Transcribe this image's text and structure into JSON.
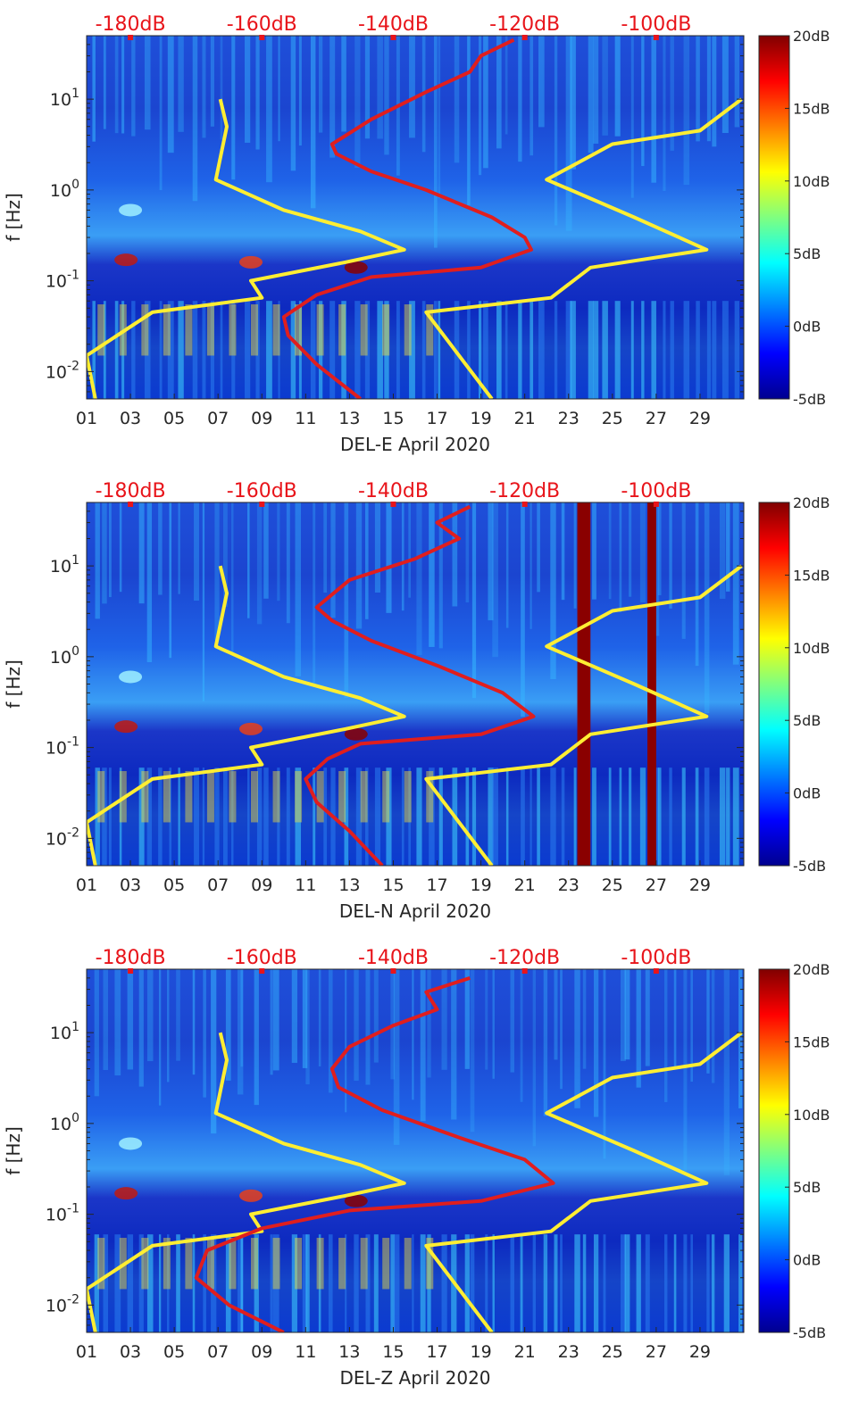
{
  "figure_title": "",
  "colors": {
    "yellow_curve": "#ffee33",
    "red_curve": "#e01e1e",
    "top_label": "#e8141a",
    "axis": "#262626"
  },
  "chart_data": [
    {
      "type": "heatmap",
      "xlabel": "DEL-E April 2020",
      "ylabel": "f [Hz]",
      "x_ticks": [
        "01",
        "03",
        "05",
        "07",
        "09",
        "11",
        "13",
        "15",
        "17",
        "19",
        "21",
        "23",
        "25",
        "27",
        "29"
      ],
      "x_range": [
        1,
        31
      ],
      "y_range_hz": [
        0.005,
        50
      ],
      "y_ticks": [
        {
          "value": 0.01,
          "base": "10",
          "exp": "-2"
        },
        {
          "value": 0.1,
          "base": "10",
          "exp": "-1"
        },
        {
          "value": 1,
          "base": "10",
          "exp": "0"
        },
        {
          "value": 10,
          "base": "10",
          "exp": "1"
        }
      ],
      "top_axis": {
        "labels": [
          "-180dB",
          "-160dB",
          "-140dB",
          "-120dB",
          "-100dB"
        ],
        "day_positions": [
          3,
          9,
          15,
          21,
          27
        ]
      },
      "colorbar": {
        "labels": [
          "20dB",
          "15dB",
          "10dB",
          "5dB",
          "0dB",
          "-5dB"
        ],
        "range_db": [
          -5,
          20
        ]
      },
      "series": [
        {
          "name": "yellow-low-model",
          "color": "#ffee33",
          "points": [
            [
              7.1,
              10
            ],
            [
              7.4,
              5
            ],
            [
              6.9,
              1.3
            ],
            [
              10,
              0.6
            ],
            [
              13.5,
              0.35
            ],
            [
              15.5,
              0.22
            ],
            [
              12.8,
              0.16
            ],
            [
              8.5,
              0.1
            ],
            [
              9,
              0.065
            ],
            [
              4,
              0.045
            ],
            [
              1,
              0.015
            ],
            [
              1.4,
              0.005
            ]
          ]
        },
        {
          "name": "yellow-high-model",
          "color": "#ffee33",
          "points": [
            [
              30.9,
              10
            ],
            [
              29,
              4.5
            ],
            [
              25,
              3.2
            ],
            [
              22,
              1.3
            ],
            [
              26,
              0.5
            ],
            [
              29.3,
              0.22
            ],
            [
              24,
              0.14
            ],
            [
              22.2,
              0.065
            ],
            [
              16.5,
              0.045
            ],
            [
              19.5,
              0.005
            ]
          ]
        },
        {
          "name": "red-psd-curve",
          "color": "#e01e1e",
          "points": [
            [
              20.5,
              45
            ],
            [
              19,
              30
            ],
            [
              18.5,
              20
            ],
            [
              16.5,
              12
            ],
            [
              14,
              6
            ],
            [
              12.2,
              3.2
            ],
            [
              12.4,
              2.5
            ],
            [
              14,
              1.6
            ],
            [
              16.5,
              1.0
            ],
            [
              19.5,
              0.5
            ],
            [
              21,
              0.3
            ],
            [
              21.3,
              0.22
            ],
            [
              19,
              0.14
            ],
            [
              14,
              0.11
            ],
            [
              11.5,
              0.07
            ],
            [
              10,
              0.04
            ],
            [
              10.2,
              0.025
            ],
            [
              11.5,
              0.012
            ],
            [
              13.5,
              0.005
            ]
          ]
        }
      ]
    },
    {
      "type": "heatmap",
      "xlabel": "DEL-N April 2020",
      "ylabel": "f [Hz]",
      "x_ticks": [
        "01",
        "03",
        "05",
        "07",
        "09",
        "11",
        "13",
        "15",
        "17",
        "19",
        "21",
        "23",
        "25",
        "27",
        "29"
      ],
      "x_range": [
        1,
        31
      ],
      "y_range_hz": [
        0.005,
        50
      ],
      "y_ticks": [
        {
          "value": 0.01,
          "base": "10",
          "exp": "-2"
        },
        {
          "value": 0.1,
          "base": "10",
          "exp": "-1"
        },
        {
          "value": 1,
          "base": "10",
          "exp": "0"
        },
        {
          "value": 10,
          "base": "10",
          "exp": "1"
        }
      ],
      "top_axis": {
        "labels": [
          "-180dB",
          "-160dB",
          "-140dB",
          "-120dB",
          "-100dB"
        ],
        "day_positions": [
          3,
          9,
          15,
          21,
          27
        ]
      },
      "colorbar": {
        "labels": [
          "20dB",
          "15dB",
          "10dB",
          "5dB",
          "0dB",
          "-5dB"
        ],
        "range_db": [
          -5,
          20
        ]
      },
      "data_gaps_days": [
        [
          23.4,
          24.0
        ],
        [
          26.6,
          27.0
        ]
      ],
      "series": [
        {
          "name": "yellow-low-model",
          "color": "#ffee33",
          "points": [
            [
              7.1,
              10
            ],
            [
              7.4,
              5
            ],
            [
              6.9,
              1.3
            ],
            [
              10,
              0.6
            ],
            [
              13.5,
              0.35
            ],
            [
              15.5,
              0.22
            ],
            [
              12.8,
              0.16
            ],
            [
              8.5,
              0.1
            ],
            [
              9,
              0.065
            ],
            [
              4,
              0.045
            ],
            [
              1,
              0.015
            ],
            [
              1.4,
              0.005
            ]
          ]
        },
        {
          "name": "yellow-high-model",
          "color": "#ffee33",
          "points": [
            [
              30.9,
              10
            ],
            [
              29,
              4.5
            ],
            [
              25,
              3.2
            ],
            [
              22,
              1.3
            ],
            [
              26,
              0.5
            ],
            [
              29.3,
              0.22
            ],
            [
              24,
              0.14
            ],
            [
              22.2,
              0.065
            ],
            [
              16.5,
              0.045
            ],
            [
              19.5,
              0.005
            ]
          ]
        },
        {
          "name": "red-psd-curve",
          "color": "#e01e1e",
          "points": [
            [
              18.5,
              45
            ],
            [
              17,
              30
            ],
            [
              18,
              20
            ],
            [
              16,
              12
            ],
            [
              13,
              7
            ],
            [
              11.5,
              3.5
            ],
            [
              12.2,
              2.5
            ],
            [
              14,
              1.5
            ],
            [
              17,
              0.8
            ],
            [
              20,
              0.4
            ],
            [
              21.4,
              0.22
            ],
            [
              19,
              0.14
            ],
            [
              13.5,
              0.11
            ],
            [
              12,
              0.075
            ],
            [
              11,
              0.045
            ],
            [
              11.5,
              0.025
            ],
            [
              13,
              0.012
            ],
            [
              14.5,
              0.005
            ]
          ]
        }
      ]
    },
    {
      "type": "heatmap",
      "xlabel": "DEL-Z April 2020",
      "ylabel": "f [Hz]",
      "x_ticks": [
        "01",
        "03",
        "05",
        "07",
        "09",
        "11",
        "13",
        "15",
        "17",
        "19",
        "21",
        "23",
        "25",
        "27",
        "29"
      ],
      "x_range": [
        1,
        31
      ],
      "y_range_hz": [
        0.005,
        50
      ],
      "y_ticks": [
        {
          "value": 0.01,
          "base": "10",
          "exp": "-2"
        },
        {
          "value": 0.1,
          "base": "10",
          "exp": "-1"
        },
        {
          "value": 1,
          "base": "10",
          "exp": "0"
        },
        {
          "value": 10,
          "base": "10",
          "exp": "1"
        }
      ],
      "top_axis": {
        "labels": [
          "-180dB",
          "-160dB",
          "-140dB",
          "-120dB",
          "-100dB"
        ],
        "day_positions": [
          3,
          9,
          15,
          21,
          27
        ]
      },
      "colorbar": {
        "labels": [
          "20dB",
          "15dB",
          "10dB",
          "5dB",
          "0dB",
          "-5dB"
        ],
        "range_db": [
          -5,
          20
        ]
      },
      "series": [
        {
          "name": "yellow-low-model",
          "color": "#ffee33",
          "points": [
            [
              7.1,
              10
            ],
            [
              7.4,
              5
            ],
            [
              6.9,
              1.3
            ],
            [
              10,
              0.6
            ],
            [
              13.5,
              0.35
            ],
            [
              15.5,
              0.22
            ],
            [
              12.8,
              0.16
            ],
            [
              8.5,
              0.1
            ],
            [
              9,
              0.065
            ],
            [
              4,
              0.045
            ],
            [
              1,
              0.015
            ],
            [
              1.4,
              0.005
            ]
          ]
        },
        {
          "name": "yellow-high-model",
          "color": "#ffee33",
          "points": [
            [
              30.9,
              10
            ],
            [
              29,
              4.5
            ],
            [
              25,
              3.2
            ],
            [
              22,
              1.3
            ],
            [
              26,
              0.5
            ],
            [
              29.3,
              0.22
            ],
            [
              24,
              0.14
            ],
            [
              22.2,
              0.065
            ],
            [
              16.5,
              0.045
            ],
            [
              19.5,
              0.005
            ]
          ]
        },
        {
          "name": "red-psd-curve",
          "color": "#e01e1e",
          "points": [
            [
              18.5,
              40
            ],
            [
              16.5,
              28
            ],
            [
              17,
              18
            ],
            [
              15,
              12
            ],
            [
              13,
              7
            ],
            [
              12.2,
              4
            ],
            [
              12.5,
              2.5
            ],
            [
              14.5,
              1.4
            ],
            [
              18,
              0.7
            ],
            [
              21,
              0.4
            ],
            [
              22.3,
              0.22
            ],
            [
              19,
              0.14
            ],
            [
              13,
              0.11
            ],
            [
              9,
              0.07
            ],
            [
              6.5,
              0.04
            ],
            [
              6,
              0.02
            ],
            [
              7.5,
              0.01
            ],
            [
              10,
              0.005
            ]
          ]
        }
      ]
    }
  ]
}
